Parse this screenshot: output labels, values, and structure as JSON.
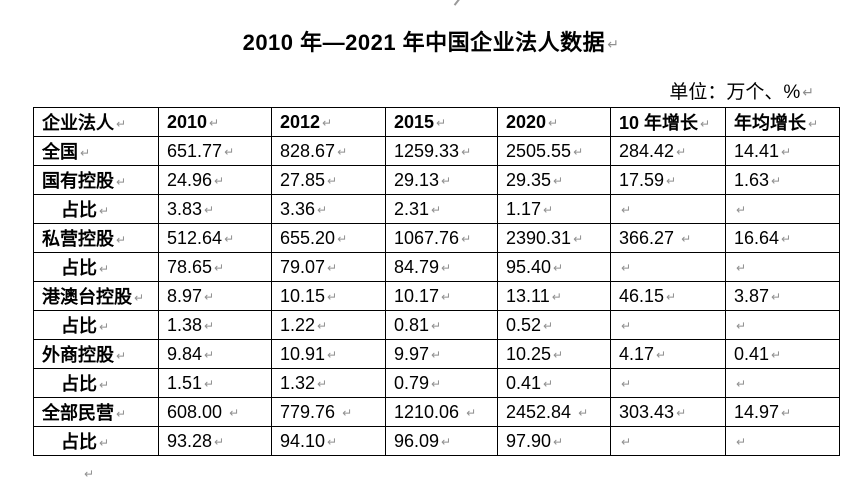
{
  "page": {
    "title": "2010 年—2021 年中国企业法人数据",
    "unit_note": "单位：万个、%"
  },
  "marks": {
    "paragraph_mark": "↵"
  },
  "table": {
    "headers": [
      "企业法人",
      "2010",
      "2012",
      "2015",
      "2020",
      "10 年增长",
      "年均增长"
    ],
    "rows": [
      {
        "label": "全国",
        "indent": false,
        "values": [
          "651.77",
          "828.67",
          "1259.33",
          "2505.55",
          "284.42",
          "14.41"
        ]
      },
      {
        "label": "国有控股",
        "indent": false,
        "values": [
          "24.96",
          "27.85",
          "29.13",
          "29.35",
          "17.59",
          "1.63"
        ]
      },
      {
        "label": "占比",
        "indent": true,
        "values": [
          "3.83",
          "3.36",
          "2.31",
          "1.17",
          "",
          ""
        ]
      },
      {
        "label": "私营控股",
        "indent": false,
        "values": [
          "512.64",
          "655.20",
          "1067.76",
          "2390.31",
          "366.27 ",
          "16.64"
        ]
      },
      {
        "label": "占比",
        "indent": true,
        "values": [
          "78.65",
          "79.07",
          "84.79",
          "95.40",
          "",
          ""
        ]
      },
      {
        "label": "港澳台控股",
        "indent": false,
        "values": [
          "8.97",
          "10.15",
          "10.17",
          "13.11",
          "46.15",
          "3.87"
        ]
      },
      {
        "label": "占比",
        "indent": true,
        "values": [
          "1.38",
          "1.22",
          "0.81",
          "0.52",
          "",
          ""
        ]
      },
      {
        "label": "外商控股",
        "indent": false,
        "values": [
          "9.84",
          "10.91",
          "9.97",
          "10.25",
          "4.17",
          "0.41"
        ]
      },
      {
        "label": "占比",
        "indent": true,
        "values": [
          "1.51",
          "1.32",
          "0.79",
          "0.41",
          "",
          ""
        ]
      },
      {
        "label": "全部民营",
        "indent": false,
        "values": [
          "608.00 ",
          "779.76 ",
          "1210.06 ",
          "2452.84 ",
          "303.43",
          "14.97"
        ]
      },
      {
        "label": "占比",
        "indent": true,
        "values": [
          "93.28",
          "94.10",
          "96.09",
          "97.90",
          "",
          ""
        ]
      }
    ]
  },
  "colors": {
    "text": "#000000",
    "border": "#000000",
    "formatting_mark": "#8f8f8f",
    "background": "#ffffff"
  }
}
